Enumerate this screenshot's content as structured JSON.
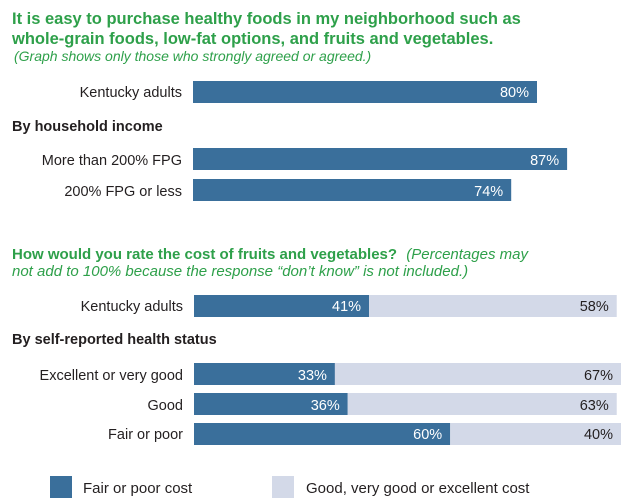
{
  "colors": {
    "primary": "#3a6f9b",
    "secondary": "#d3d9e8",
    "heading": "#2ea04a",
    "text": "#231f20"
  },
  "chart_data": [
    {
      "type": "bar",
      "title": "It is easy to purchase healthy foods in my neighborhood such as whole-grain foods, low-fat options, and fruits and vegetables.",
      "title_lines": [
        "It is easy to purchase healthy foods in my neighborhood such as",
        "whole-grain foods, low-fat options, and fruits and vegetables."
      ],
      "subtitle": "(Graph shows only those who strongly agreed or agreed.)",
      "xlim": [
        0,
        100
      ],
      "groups": [
        {
          "heading": "",
          "rows": [
            {
              "category": "Kentucky adults",
              "value": 80,
              "value_label": "80%"
            }
          ]
        },
        {
          "heading": "By household income",
          "rows": [
            {
              "category": "More than 200% FPG",
              "value": 87,
              "value_label": "87%"
            },
            {
              "category": "200% FPG or less",
              "value": 74,
              "value_label": "74%"
            }
          ]
        }
      ]
    },
    {
      "type": "bar",
      "stacked": true,
      "title": "How would you rate the cost of fruits and vegetables?",
      "note": "(Percentages may not add to 100% because the response “don’t know” is not included.)",
      "title_line1_bold": "How would you rate the cost of fruits and vegetables?",
      "title_line1_note": "(Percentages may",
      "title_line2_note": "not add to 100% because the response “don’t know” is not included.)",
      "xlim": [
        0,
        100
      ],
      "legend": {
        "position": "bottom",
        "items": [
          {
            "name": "Fair or poor cost",
            "color": "#3a6f9b"
          },
          {
            "name": "Good, very good or excellent cost",
            "color": "#d3d9e8"
          }
        ]
      },
      "groups": [
        {
          "heading": "",
          "rows": [
            {
              "category": "Kentucky adults",
              "values": [
                41,
                58
              ],
              "value_labels": [
                "41%",
                "58%"
              ]
            }
          ]
        },
        {
          "heading": "By self-reported health status",
          "rows": [
            {
              "category": "Excellent or very good",
              "values": [
                33,
                67
              ],
              "value_labels": [
                "33%",
                "67%"
              ]
            },
            {
              "category": "Good",
              "values": [
                36,
                63
              ],
              "value_labels": [
                "36%",
                "63%"
              ]
            },
            {
              "category": "Fair or poor",
              "values": [
                60,
                40
              ],
              "value_labels": [
                "60%",
                "40%"
              ]
            }
          ]
        }
      ]
    }
  ]
}
